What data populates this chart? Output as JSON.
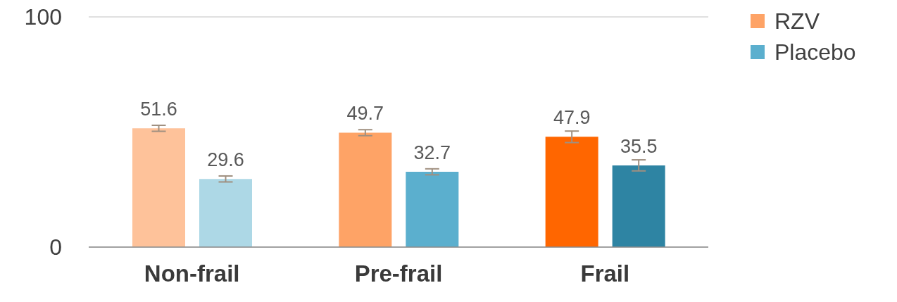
{
  "chart_data": {
    "type": "bar",
    "categories": [
      "Non-frail",
      "Pre-frail",
      "Frail"
    ],
    "series": [
      {
        "name": "RZV",
        "color": "#fea366",
        "colors": [
          "#fec29a",
          "#fea366",
          "#ff6600"
        ],
        "values": [
          51.6,
          49.7,
          47.9
        ],
        "errors": [
          1.3,
          1.3,
          2.5
        ]
      },
      {
        "name": "Placebo",
        "color": "#5bafce",
        "colors": [
          "#add8e6",
          "#5bafce",
          "#2e84a3"
        ],
        "values": [
          29.6,
          32.7,
          35.5
        ],
        "errors": [
          1.3,
          1.3,
          2.4
        ]
      }
    ],
    "ylim": [
      0,
      100
    ],
    "yticks": [
      0,
      100
    ],
    "grid": "y",
    "legend": "top right",
    "data_labels": true
  }
}
